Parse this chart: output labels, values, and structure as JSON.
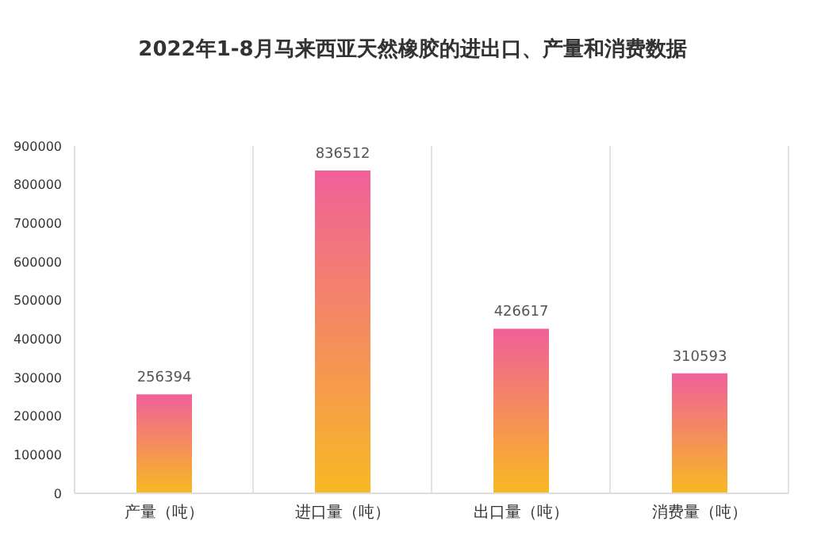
{
  "chart_data": {
    "type": "bar",
    "title": "2022年1-8月马来西亚天然橡胶的进出口、产量和消费数据",
    "categories": [
      "产量（吨）",
      "进口量（吨）",
      "出口量（吨）",
      "消费量（吨）"
    ],
    "series": [
      {
        "color": "#f0609a",
        "values": [
          256394,
          836512,
          426617,
          310593
        ]
      }
    ],
    "ylim": [
      0,
      900000
    ],
    "yticks": [
      0,
      100000,
      200000,
      300000,
      400000,
      500000,
      600000,
      700000,
      800000,
      900000
    ],
    "grid": "x",
    "legend": false,
    "data_labels": true
  }
}
